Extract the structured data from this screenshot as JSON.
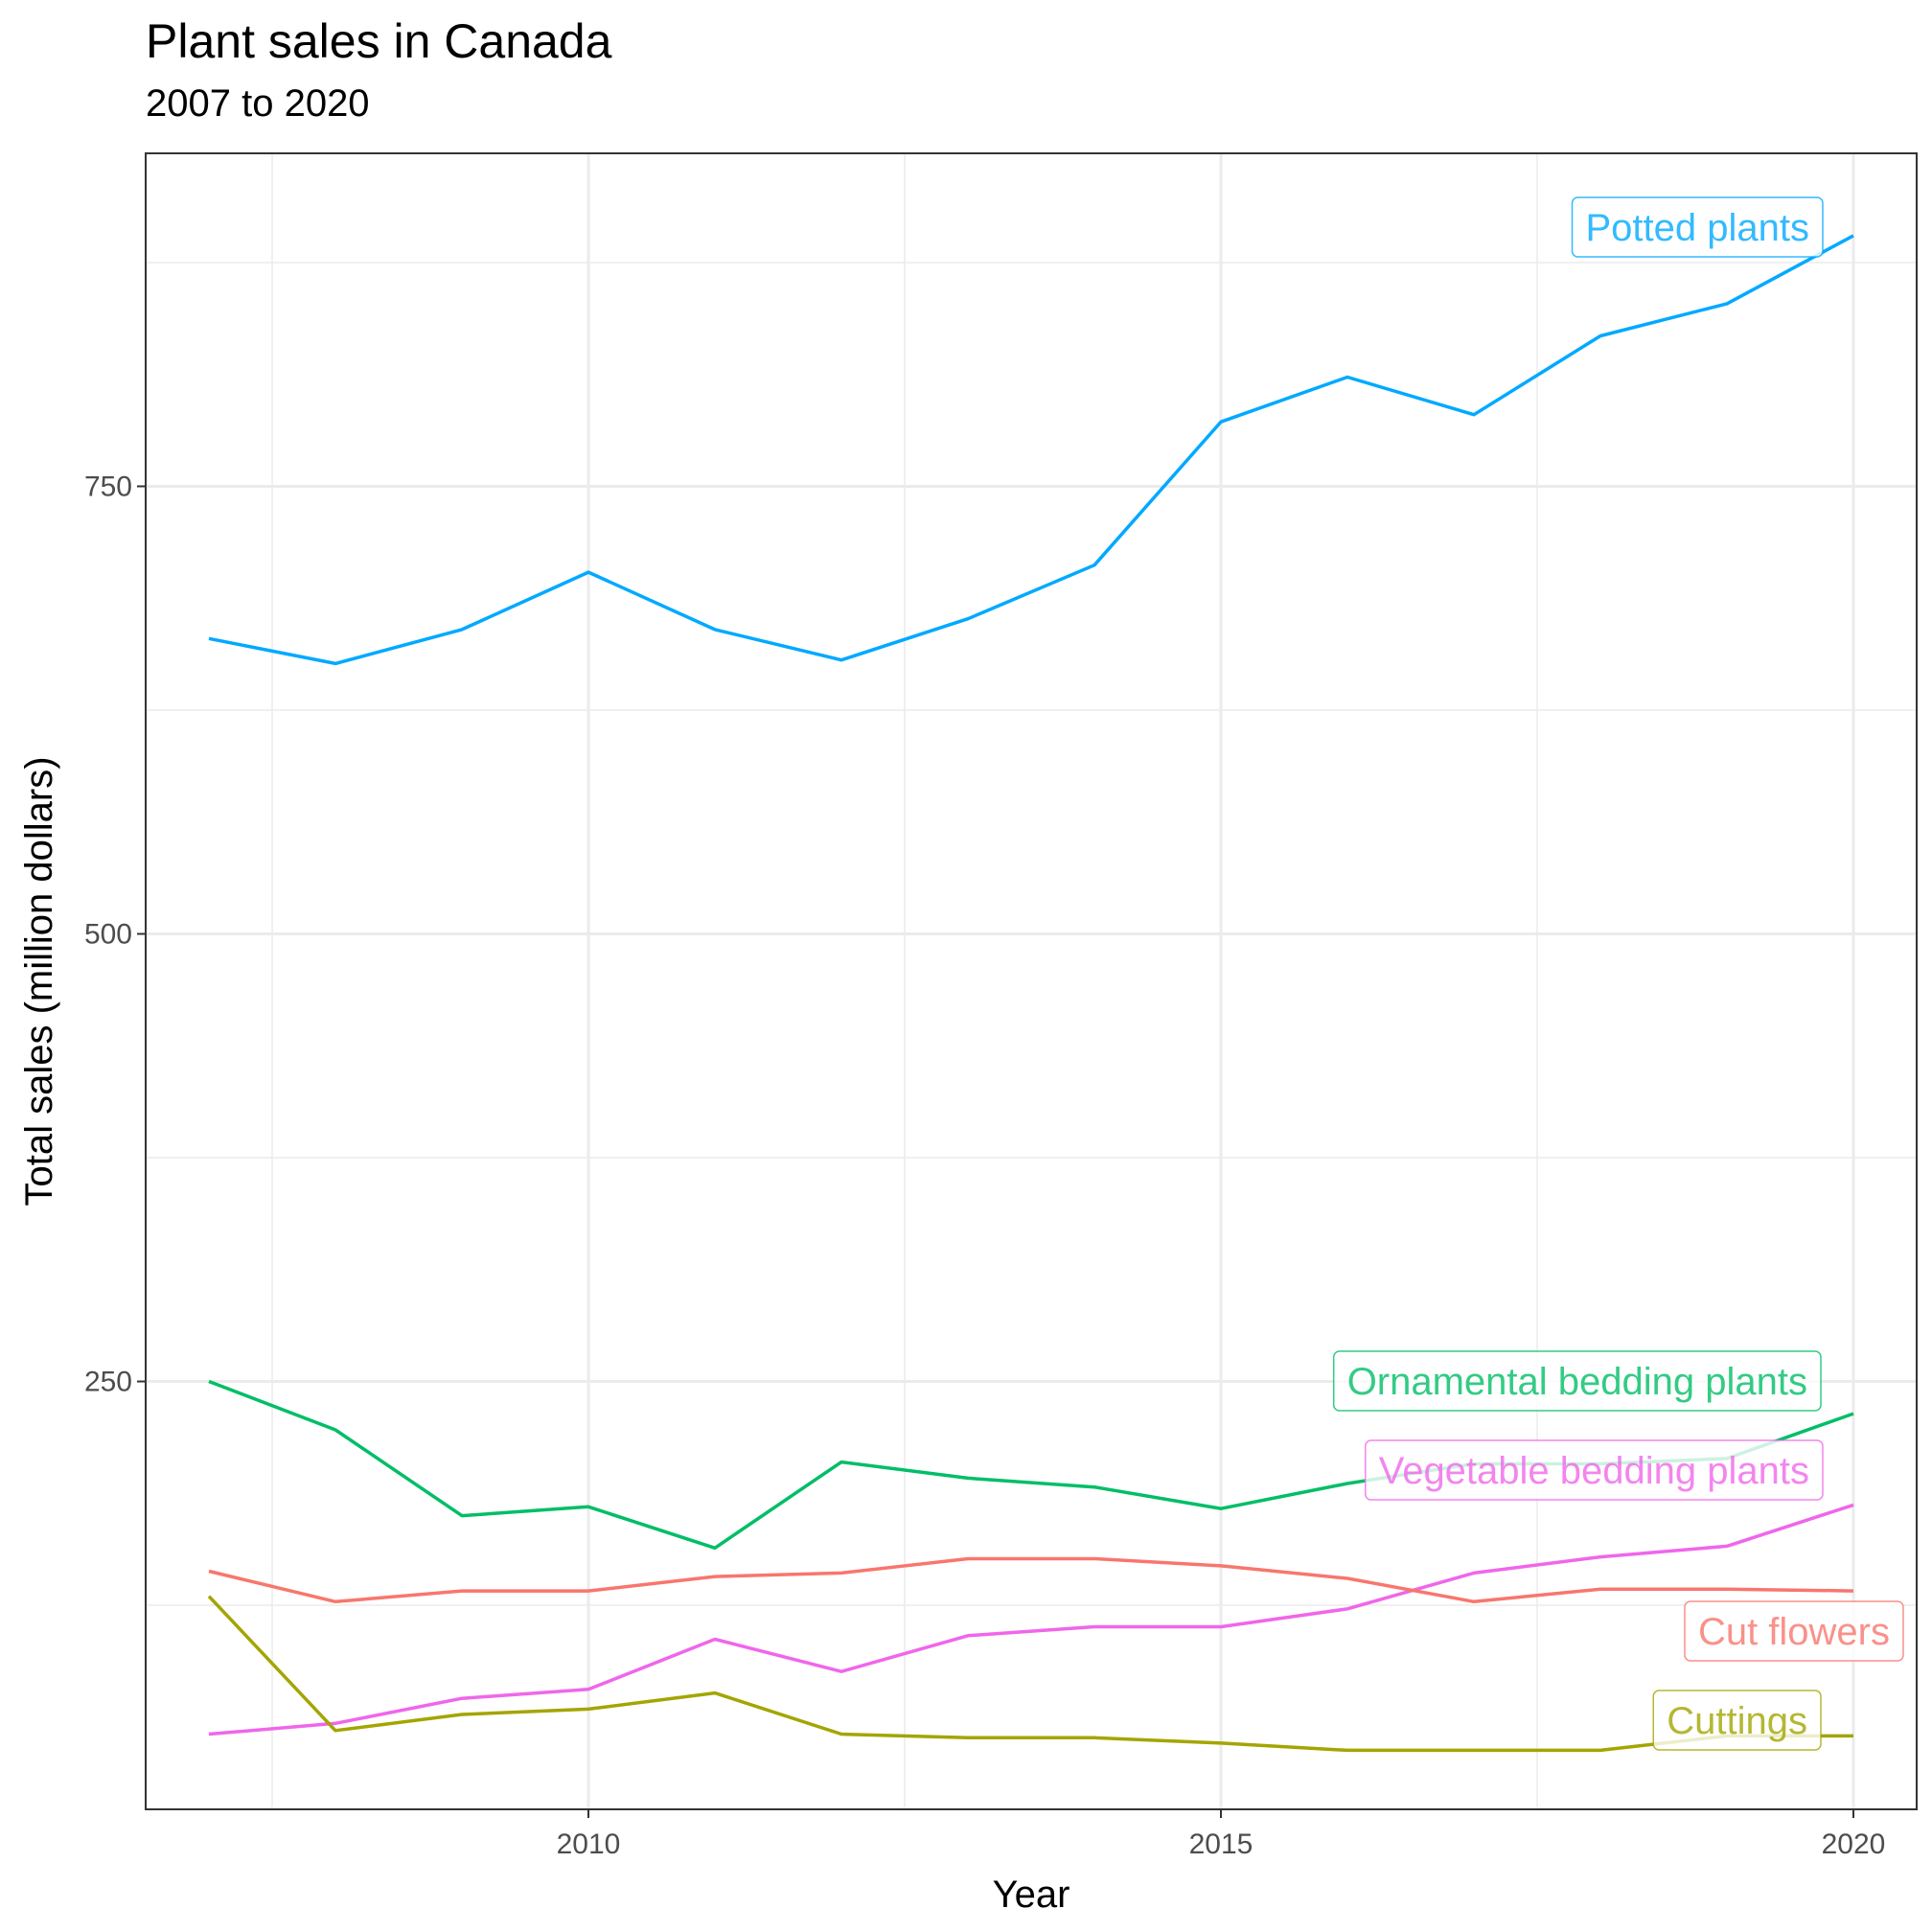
{
  "chart_data": {
    "type": "line",
    "title": "Plant sales in Canada",
    "subtitle": "2007 to 2020",
    "xlabel": "Year",
    "ylabel": "Total sales (million dollars)",
    "xlim": [
      2006.5,
      2020.5
    ],
    "ylim": [
      11,
      936
    ],
    "x_ticks": [
      2010,
      2015,
      2020
    ],
    "y_ticks": [
      250,
      500,
      750
    ],
    "grid": true,
    "legend": "none (direct labels at line ends)",
    "x": [
      2007,
      2008,
      2009,
      2010,
      2011,
      2012,
      2013,
      2014,
      2015,
      2016,
      2017,
      2018,
      2019,
      2020
    ],
    "series": [
      {
        "name": "Potted plants",
        "color": "#00A9FF",
        "values": [
          665,
          651,
          670,
          702,
          670,
          653,
          676,
          706,
          786,
          811,
          790,
          834,
          852,
          890
        ]
      },
      {
        "name": "Ornamental bedding plants",
        "color": "#00BE67",
        "values": [
          250,
          223,
          175,
          180,
          157,
          205,
          196,
          191,
          179,
          193,
          204,
          204,
          207,
          232
        ]
      },
      {
        "name": "Vegetable bedding plants",
        "color": "#F066EA",
        "values": [
          53,
          59,
          73,
          78,
          106,
          88,
          108,
          113,
          113,
          123,
          143,
          152,
          158,
          181
        ]
      },
      {
        "name": "Cut flowers",
        "color": "#F8766D",
        "values": [
          144,
          127,
          133,
          133,
          141,
          143,
          151,
          151,
          147,
          140,
          127,
          134,
          134,
          133
        ]
      },
      {
        "name": "Cuttings",
        "color": "#A3A500",
        "values": [
          130,
          55,
          64,
          67,
          76,
          53,
          51,
          51,
          48,
          44,
          44,
          44,
          52,
          52
        ]
      }
    ]
  }
}
